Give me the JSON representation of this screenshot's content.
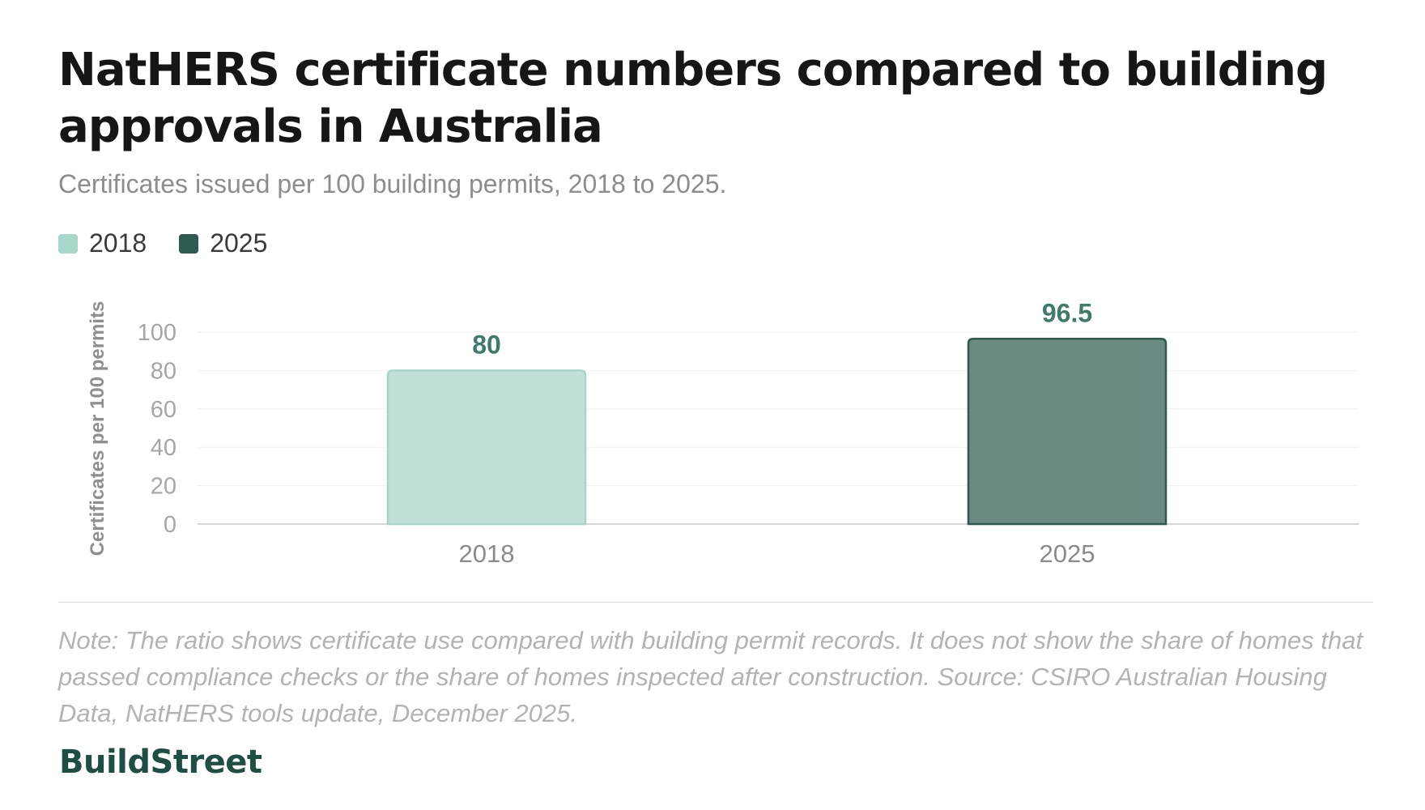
{
  "chart_data": {
    "type": "bar",
    "title": "NatHERS certificate numbers compared to building approvals in Australia",
    "subtitle": "Certificates issued per 100 building permits, 2018 to 2025.",
    "ylabel": "Certificates per 100 permits",
    "xlabel": "",
    "categories": [
      "2018",
      "2025"
    ],
    "values": [
      80,
      96.5
    ],
    "data_labels": [
      "80",
      "96.5"
    ],
    "ylim": [
      0,
      100
    ],
    "yticks": [
      0,
      20,
      40,
      60,
      80,
      100
    ],
    "grid": true,
    "legend": {
      "placement": "top-left",
      "entries": [
        "2018",
        "2025"
      ]
    },
    "colors": {
      "2018_fill": "#c1e0da",
      "2018_stroke": "#a8d5cb",
      "2025_fill": "#698b83",
      "2025_stroke": "#2f5a51",
      "data_label": "#3e7b6d",
      "legend_2018": "#a7d8cc",
      "legend_2025": "#2d5a51"
    }
  },
  "note": "Note: The ratio shows certificate use compared with building permit records. It does not show the share of homes that passed compliance checks or the share of homes inspected after construction. Source: CSIRO Australian Housing Data, NatHERS tools update, December 2025.",
  "brand": "BuildStreet"
}
